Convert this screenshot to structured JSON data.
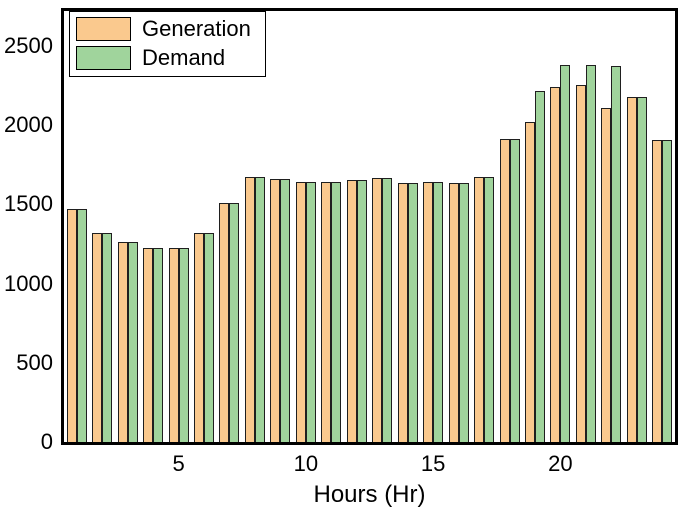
{
  "chart_data": {
    "type": "bar",
    "title": "",
    "xlabel": "Hours (Hr)",
    "ylabel": "",
    "categories": [
      1,
      2,
      3,
      4,
      5,
      6,
      7,
      8,
      9,
      10,
      11,
      12,
      13,
      14,
      15,
      16,
      17,
      18,
      19,
      20,
      21,
      22,
      23,
      24
    ],
    "series": [
      {
        "name": "Generation",
        "color": "#FAC98E",
        "values": [
          1470,
          1320,
          1260,
          1225,
          1225,
          1320,
          1510,
          1670,
          1660,
          1640,
          1640,
          1655,
          1665,
          1635,
          1640,
          1635,
          1675,
          1915,
          2020,
          2240,
          2250,
          2110,
          2180,
          1905
        ]
      },
      {
        "name": "Demand",
        "color": "#A0D49C",
        "values": [
          1470,
          1320,
          1260,
          1225,
          1225,
          1320,
          1510,
          1670,
          1660,
          1640,
          1640,
          1655,
          1665,
          1635,
          1640,
          1635,
          1675,
          1915,
          2215,
          2380,
          2380,
          2375,
          2180,
          1905
        ]
      }
    ],
    "xticks": [
      5,
      10,
      15,
      20
    ],
    "yticks": [
      0,
      500,
      1000,
      1500,
      2000,
      2500
    ],
    "ylim": [
      0,
      2720
    ],
    "grid": false,
    "legend_position": "top-left",
    "bar_border_color": "#1f1f1f",
    "frame_color": "#000000"
  }
}
